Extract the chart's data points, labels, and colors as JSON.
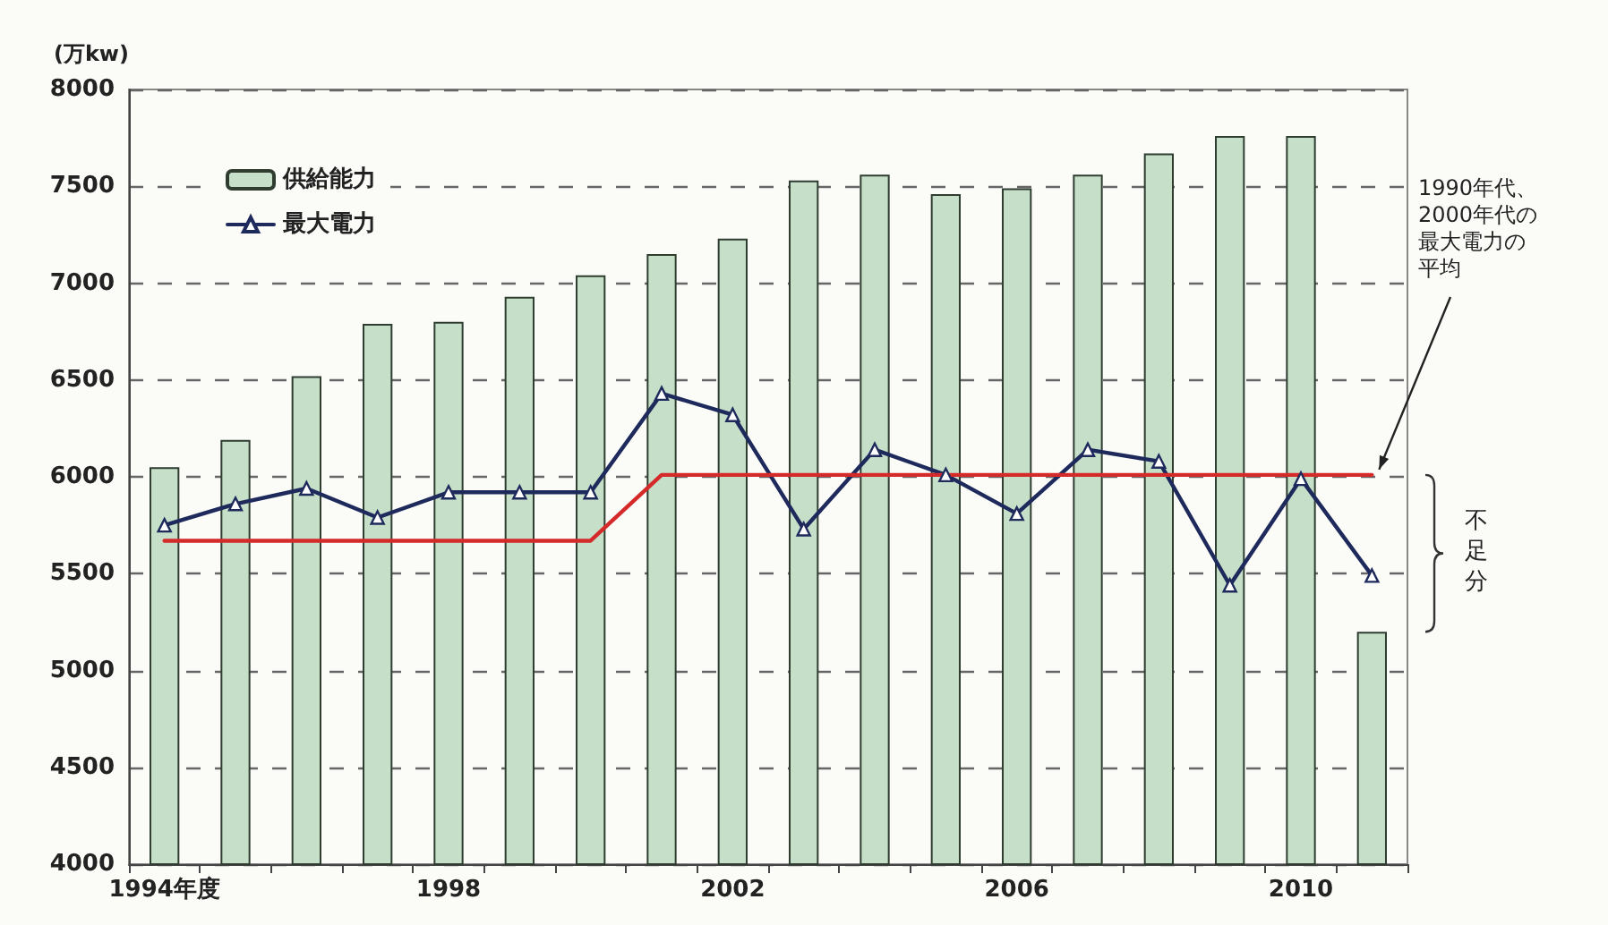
{
  "chart_data": {
    "type": "bar",
    "ylabel": "(万kw)",
    "categories": [
      "1994年度",
      null,
      null,
      null,
      "1998",
      null,
      null,
      null,
      "2002",
      null,
      null,
      null,
      "2006",
      null,
      null,
      null,
      "2010",
      null
    ],
    "series": [
      {
        "name": "供給能力",
        "color": "#c6dfc9",
        "values": [
          6050,
          6190,
          6520,
          6790,
          6800,
          6930,
          7040,
          7150,
          7230,
          7530,
          7560,
          7460,
          7490,
          7560,
          7670,
          7760,
          7760,
          5200
        ]
      },
      {
        "name": "最大電力",
        "type": "line",
        "color": "#1f2a5c",
        "values": [
          5750,
          5860,
          5940,
          5790,
          5920,
          5920,
          5920,
          6430,
          6320,
          5730,
          6140,
          6010,
          5810,
          6140,
          6080,
          5440,
          5990,
          5490
        ]
      },
      {
        "type": "line",
        "color": "#d42a2a",
        "marker": "none",
        "values": [
          5670,
          5670,
          5670,
          5670,
          5670,
          5670,
          5670,
          6010,
          6010,
          6010,
          6010,
          6010,
          6010,
          6010,
          6010,
          6010,
          6010,
          6010
        ]
      }
    ],
    "ylim": [
      4000,
      8000
    ],
    "yticks": [
      4000,
      4500,
      5000,
      5500,
      6000,
      6500,
      7000,
      7500,
      8000
    ],
    "grid": "y",
    "legend": "top left",
    "marker": "triangle",
    "annotations": [
      "1990年代、2000年代の最大電力の平均",
      "不足分"
    ]
  }
}
